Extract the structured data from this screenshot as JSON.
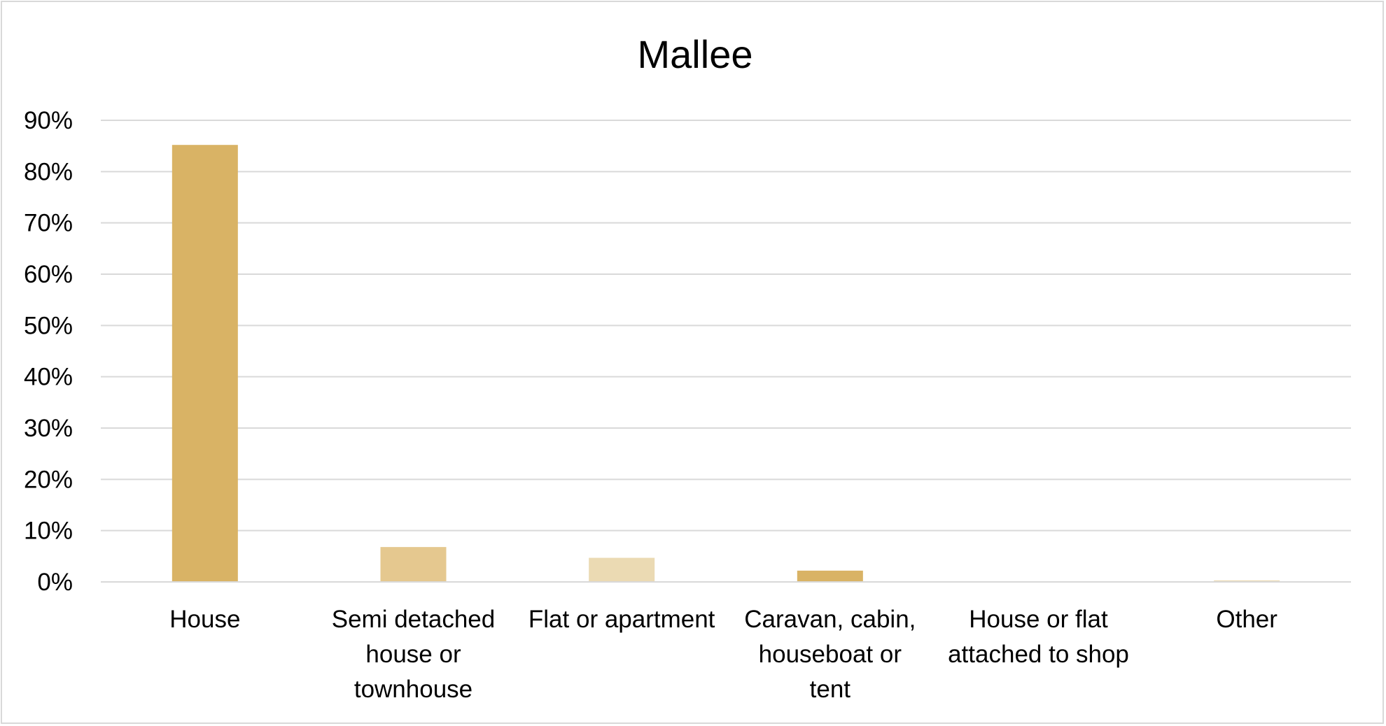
{
  "chart_data": {
    "type": "bar",
    "title": "Mallee",
    "xlabel": "",
    "ylabel": "",
    "categories": [
      "House",
      "Semi detached house or townhouse",
      "Flat or apartment",
      "Caravan, cabin, houseboat or tent",
      "House or flat attached to shop",
      "Other"
    ],
    "category_label_lines": [
      [
        "House"
      ],
      [
        "Semi detached",
        "house or",
        "townhouse"
      ],
      [
        "Flat or apartment"
      ],
      [
        "Caravan, cabin,",
        "houseboat or",
        "tent"
      ],
      [
        "House or flat",
        "attached to shop"
      ],
      [
        "Other"
      ]
    ],
    "values": [
      85.2,
      6.8,
      4.7,
      2.2,
      0.0,
      0.3
    ],
    "bar_colors": [
      "#D9B365",
      "#E5C88F",
      "#EBDAB3",
      "#D9B365",
      "#E5C88F",
      "#EBDAB3"
    ],
    "ylim": [
      0,
      90
    ],
    "yticks": [
      0,
      10,
      20,
      30,
      40,
      50,
      60,
      70,
      80,
      90
    ],
    "ytick_labels": [
      "0%",
      "10%",
      "20%",
      "30%",
      "40%",
      "50%",
      "60%",
      "70%",
      "80%",
      "90%"
    ],
    "grid": true,
    "legend": "none",
    "colors": {
      "gridline": "#d9d9d9",
      "axis_line": "#d9d9d9",
      "text": "#000000",
      "border": "#d9d9d9"
    }
  }
}
